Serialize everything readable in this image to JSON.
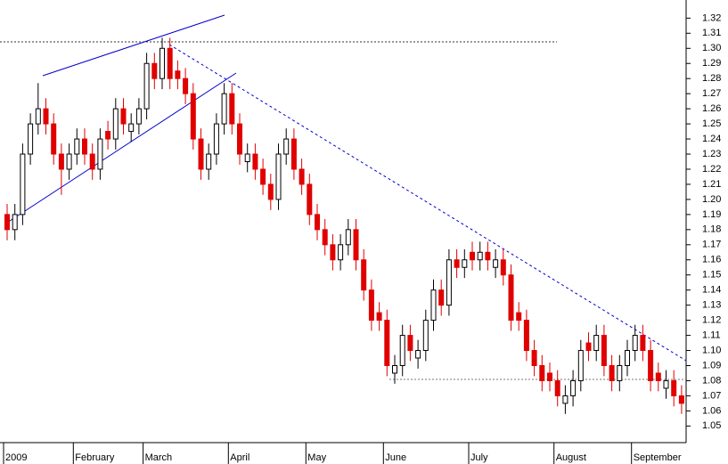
{
  "chart_data": {
    "type": "candlestick",
    "categories": [
      "2009",
      null,
      null,
      null,
      null,
      null,
      null,
      null,
      null,
      "February",
      null,
      null,
      null,
      null,
      null,
      null,
      null,
      null,
      "March",
      null,
      null,
      null,
      null,
      null,
      null,
      null,
      null,
      null,
      null,
      "April",
      null,
      null,
      null,
      null,
      null,
      null,
      null,
      null,
      null,
      "May",
      null,
      null,
      null,
      null,
      null,
      null,
      null,
      null,
      null,
      "June",
      null,
      null,
      null,
      null,
      null,
      null,
      null,
      null,
      null,
      null,
      "July",
      null,
      null,
      null,
      null,
      null,
      null,
      null,
      null,
      null,
      null,
      "August",
      null,
      null,
      null,
      null,
      null,
      null,
      null,
      null,
      null,
      "September",
      null,
      null,
      null,
      null,
      null,
      null
    ],
    "open": [
      1.19,
      1.18,
      1.19,
      1.23,
      1.25,
      1.26,
      1.25,
      1.23,
      1.22,
      1.23,
      1.24,
      1.23,
      1.22,
      1.245,
      1.24,
      1.26,
      1.245,
      1.25,
      1.26,
      1.29,
      1.28,
      1.3,
      1.285,
      1.28,
      1.27,
      1.24,
      1.22,
      1.23,
      1.25,
      1.27,
      1.25,
      1.225,
      1.23,
      1.22,
      1.21,
      1.2,
      1.23,
      1.24,
      1.22,
      1.21,
      1.19,
      1.18,
      1.17,
      1.16,
      1.17,
      1.18,
      1.16,
      1.14,
      1.125,
      1.12,
      1.085,
      1.09,
      1.11,
      1.095,
      1.1,
      1.12,
      1.14,
      1.13,
      1.16,
      1.155,
      1.165,
      1.16,
      1.165,
      1.155,
      1.16,
      1.15,
      1.125,
      1.12,
      1.1,
      1.09,
      1.085,
      1.08,
      1.065,
      1.07,
      1.08,
      1.105,
      1.1,
      1.11,
      1.09,
      1.08,
      1.09,
      1.1,
      1.11,
      1.1,
      1.085,
      1.075,
      1.08,
      1.07
    ],
    "high": [
      1.197,
      1.197,
      1.237,
      1.257,
      1.277,
      1.267,
      1.257,
      1.237,
      1.237,
      1.247,
      1.247,
      1.237,
      1.247,
      1.252,
      1.267,
      1.267,
      1.257,
      1.267,
      1.297,
      1.297,
      1.307,
      1.307,
      1.292,
      1.287,
      1.277,
      1.247,
      1.237,
      1.257,
      1.277,
      1.277,
      1.257,
      1.237,
      1.237,
      1.227,
      1.217,
      1.237,
      1.247,
      1.247,
      1.227,
      1.217,
      1.197,
      1.187,
      1.177,
      1.177,
      1.187,
      1.187,
      1.167,
      1.147,
      1.132,
      1.127,
      1.097,
      1.117,
      1.117,
      1.107,
      1.127,
      1.147,
      1.147,
      1.167,
      1.167,
      1.167,
      1.172,
      1.172,
      1.172,
      1.167,
      1.167,
      1.157,
      1.132,
      1.127,
      1.107,
      1.097,
      1.092,
      1.087,
      1.077,
      1.087,
      1.107,
      1.112,
      1.117,
      1.117,
      1.097,
      1.097,
      1.107,
      1.117,
      1.117,
      1.107,
      1.092,
      1.087,
      1.087,
      1.077
    ],
    "low": [
      1.173,
      1.173,
      1.183,
      1.223,
      1.243,
      1.243,
      1.223,
      1.203,
      1.213,
      1.223,
      1.223,
      1.213,
      1.213,
      1.233,
      1.233,
      1.243,
      1.238,
      1.243,
      1.253,
      1.273,
      1.273,
      1.273,
      1.273,
      1.263,
      1.233,
      1.213,
      1.213,
      1.223,
      1.243,
      1.243,
      1.223,
      1.218,
      1.213,
      1.203,
      1.193,
      1.193,
      1.223,
      1.213,
      1.203,
      1.183,
      1.173,
      1.163,
      1.153,
      1.153,
      1.163,
      1.153,
      1.133,
      1.113,
      1.113,
      1.083,
      1.078,
      1.083,
      1.093,
      1.088,
      1.093,
      1.113,
      1.123,
      1.123,
      1.148,
      1.148,
      1.153,
      1.153,
      1.153,
      1.148,
      1.143,
      1.113,
      1.113,
      1.093,
      1.083,
      1.073,
      1.073,
      1.063,
      1.058,
      1.063,
      1.073,
      1.093,
      1.093,
      1.083,
      1.073,
      1.073,
      1.083,
      1.093,
      1.093,
      1.073,
      1.073,
      1.068,
      1.063,
      1.058
    ],
    "close": [
      1.18,
      1.19,
      1.23,
      1.25,
      1.26,
      1.25,
      1.23,
      1.22,
      1.23,
      1.24,
      1.23,
      1.22,
      1.24,
      1.24,
      1.26,
      1.25,
      1.25,
      1.26,
      1.29,
      1.28,
      1.3,
      1.28,
      1.28,
      1.27,
      1.24,
      1.22,
      1.23,
      1.25,
      1.27,
      1.25,
      1.23,
      1.23,
      1.22,
      1.21,
      1.2,
      1.23,
      1.24,
      1.22,
      1.21,
      1.19,
      1.18,
      1.17,
      1.16,
      1.17,
      1.18,
      1.16,
      1.14,
      1.12,
      1.12,
      1.09,
      1.09,
      1.11,
      1.1,
      1.1,
      1.12,
      1.14,
      1.13,
      1.16,
      1.155,
      1.16,
      1.16,
      1.165,
      1.16,
      1.16,
      1.15,
      1.12,
      1.12,
      1.1,
      1.09,
      1.08,
      1.08,
      1.07,
      1.07,
      1.08,
      1.1,
      1.1,
      1.11,
      1.09,
      1.08,
      1.09,
      1.1,
      1.11,
      1.1,
      1.08,
      1.08,
      1.08,
      1.07,
      1.065
    ],
    "up_color": "#ffffff",
    "down_color": "#e00000",
    "ylim": [
      1.039,
      1.332
    ],
    "yticks": [
      1.05,
      1.06,
      1.07,
      1.08,
      1.09,
      {
        "value": 1.1,
        "label": "1.10"
      },
      1.11,
      1.12,
      1.13,
      1.14,
      1.15,
      1.16,
      1.17,
      1.18,
      1.19,
      {
        "value": 1.2,
        "label": "1.20"
      },
      1.21,
      1.22,
      1.23,
      1.24,
      1.25,
      1.26,
      1.27,
      1.28,
      1.29,
      {
        "value": 1.3,
        "label": "1.30"
      },
      1.31,
      1.32
    ]
  }
}
